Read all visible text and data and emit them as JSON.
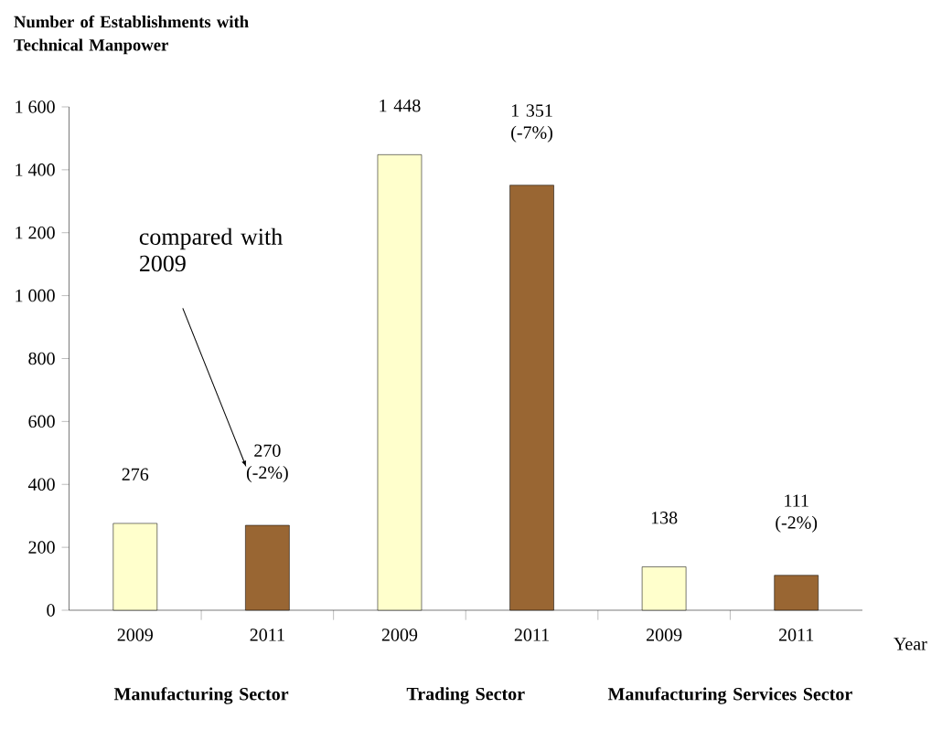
{
  "chart_data": {
    "type": "bar",
    "ylabel": "Number of Establishments with Technical Manpower",
    "xlabel": "Year",
    "categories": [
      "2009",
      "2011",
      "2009",
      "2011",
      "2009",
      "2011"
    ],
    "values": [
      276,
      270,
      1448,
      1351,
      138,
      111
    ],
    "colors": [
      "#ffffcc",
      "#996633",
      "#ffffcc",
      "#996633",
      "#ffffcc",
      "#996633"
    ],
    "value_labels": [
      "276",
      "270 (-2%)",
      "1 448",
      "1 351 (-7%)",
      "138",
      "111 (-2%)"
    ],
    "ylim": [
      0,
      1600
    ],
    "yticks": [
      0,
      200,
      400,
      600,
      800,
      {
        "value": 1000,
        "label": "1 000"
      },
      {
        "value": 1200,
        "label": "1 200"
      },
      {
        "value": 1400,
        "label": "1 400"
      },
      {
        "value": 1600,
        "label": "1 600"
      }
    ],
    "annotations": [
      "Manufacturing Sector",
      "Trading Sector",
      "Manufacturing Services Sector",
      "compared with 2009"
    ],
    "data_labels": false
  }
}
